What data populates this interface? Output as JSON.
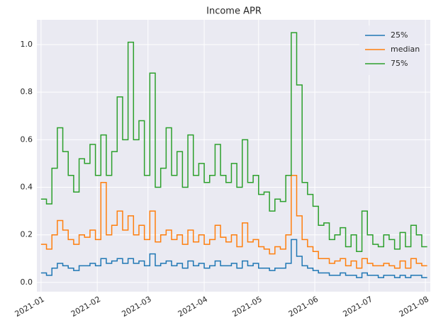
{
  "chart_data": {
    "type": "step",
    "title": "Income APR",
    "x": [
      0,
      3,
      6,
      9,
      12,
      15,
      18,
      21,
      24,
      27,
      30,
      33,
      36,
      39,
      42,
      45,
      48,
      51,
      54,
      57,
      60,
      63,
      66,
      69,
      72,
      75,
      78,
      81,
      84,
      87,
      90,
      93,
      96,
      99,
      102,
      105,
      108,
      111,
      114,
      117,
      120,
      123,
      126,
      129,
      132,
      135,
      138,
      141,
      144,
      147,
      150,
      153,
      156,
      159,
      162,
      165,
      168,
      171,
      174,
      177,
      180,
      183,
      186,
      189,
      192,
      195,
      198,
      201,
      204,
      207,
      210,
      213
    ],
    "series": [
      {
        "name": "25%",
        "color": "#1f77b4",
        "values": [
          0.04,
          0.03,
          0.06,
          0.08,
          0.07,
          0.06,
          0.05,
          0.07,
          0.07,
          0.08,
          0.07,
          0.1,
          0.08,
          0.09,
          0.1,
          0.08,
          0.1,
          0.08,
          0.09,
          0.07,
          0.12,
          0.07,
          0.08,
          0.09,
          0.07,
          0.08,
          0.06,
          0.09,
          0.07,
          0.08,
          0.06,
          0.07,
          0.09,
          0.07,
          0.07,
          0.08,
          0.06,
          0.09,
          0.07,
          0.08,
          0.06,
          0.06,
          0.05,
          0.06,
          0.06,
          0.08,
          0.18,
          0.11,
          0.07,
          0.06,
          0.05,
          0.04,
          0.04,
          0.03,
          0.03,
          0.04,
          0.03,
          0.03,
          0.02,
          0.04,
          0.03,
          0.03,
          0.02,
          0.03,
          0.03,
          0.02,
          0.03,
          0.02,
          0.03,
          0.03,
          0.02,
          0.02
        ]
      },
      {
        "name": "median",
        "color": "#ff7f0e",
        "values": [
          0.16,
          0.14,
          0.2,
          0.26,
          0.22,
          0.18,
          0.16,
          0.2,
          0.19,
          0.22,
          0.18,
          0.42,
          0.2,
          0.24,
          0.3,
          0.22,
          0.28,
          0.2,
          0.24,
          0.18,
          0.3,
          0.17,
          0.2,
          0.22,
          0.18,
          0.2,
          0.16,
          0.22,
          0.17,
          0.2,
          0.16,
          0.18,
          0.24,
          0.19,
          0.17,
          0.2,
          0.15,
          0.25,
          0.17,
          0.18,
          0.15,
          0.14,
          0.12,
          0.15,
          0.14,
          0.2,
          0.45,
          0.28,
          0.18,
          0.15,
          0.13,
          0.1,
          0.1,
          0.08,
          0.09,
          0.1,
          0.07,
          0.09,
          0.06,
          0.1,
          0.08,
          0.07,
          0.07,
          0.08,
          0.07,
          0.06,
          0.09,
          0.06,
          0.1,
          0.08,
          0.07,
          0.07
        ]
      },
      {
        "name": "75%",
        "color": "#2ca02c",
        "values": [
          0.35,
          0.33,
          0.48,
          0.65,
          0.55,
          0.45,
          0.38,
          0.52,
          0.5,
          0.58,
          0.45,
          0.62,
          0.45,
          0.55,
          0.78,
          0.6,
          1.01,
          0.6,
          0.68,
          0.45,
          0.88,
          0.4,
          0.48,
          0.65,
          0.45,
          0.55,
          0.4,
          0.62,
          0.45,
          0.5,
          0.42,
          0.45,
          0.58,
          0.45,
          0.42,
          0.5,
          0.4,
          0.6,
          0.42,
          0.45,
          0.37,
          0.38,
          0.3,
          0.35,
          0.34,
          0.45,
          1.05,
          0.83,
          0.42,
          0.37,
          0.32,
          0.24,
          0.25,
          0.18,
          0.2,
          0.23,
          0.15,
          0.2,
          0.13,
          0.3,
          0.2,
          0.16,
          0.15,
          0.2,
          0.18,
          0.14,
          0.21,
          0.15,
          0.24,
          0.2,
          0.15,
          0.15
        ]
      }
    ],
    "xlim": [
      -2.3,
      214.7
    ],
    "xticks": [
      {
        "value": 0,
        "label": "2021-01"
      },
      {
        "value": 31,
        "label": "2021-02"
      },
      {
        "value": 59,
        "label": "2021-03"
      },
      {
        "value": 90,
        "label": "2021-04"
      },
      {
        "value": 120,
        "label": "2021-05"
      },
      {
        "value": 151,
        "label": "2021-06"
      },
      {
        "value": 181,
        "label": "2021-07"
      },
      {
        "value": 212,
        "label": "2021-08"
      }
    ],
    "ylim": [
      -0.039,
      1.104
    ],
    "yticks": [
      {
        "value": 0,
        "label": "0.0"
      },
      {
        "value": 0.2,
        "label": "0.2"
      },
      {
        "value": 0.4,
        "label": "0.4"
      },
      {
        "value": 0.6,
        "label": "0.6"
      },
      {
        "value": 0.8,
        "label": "0.8"
      },
      {
        "value": 1,
        "label": "1.0"
      }
    ],
    "grid": true,
    "legend": "upper right"
  }
}
